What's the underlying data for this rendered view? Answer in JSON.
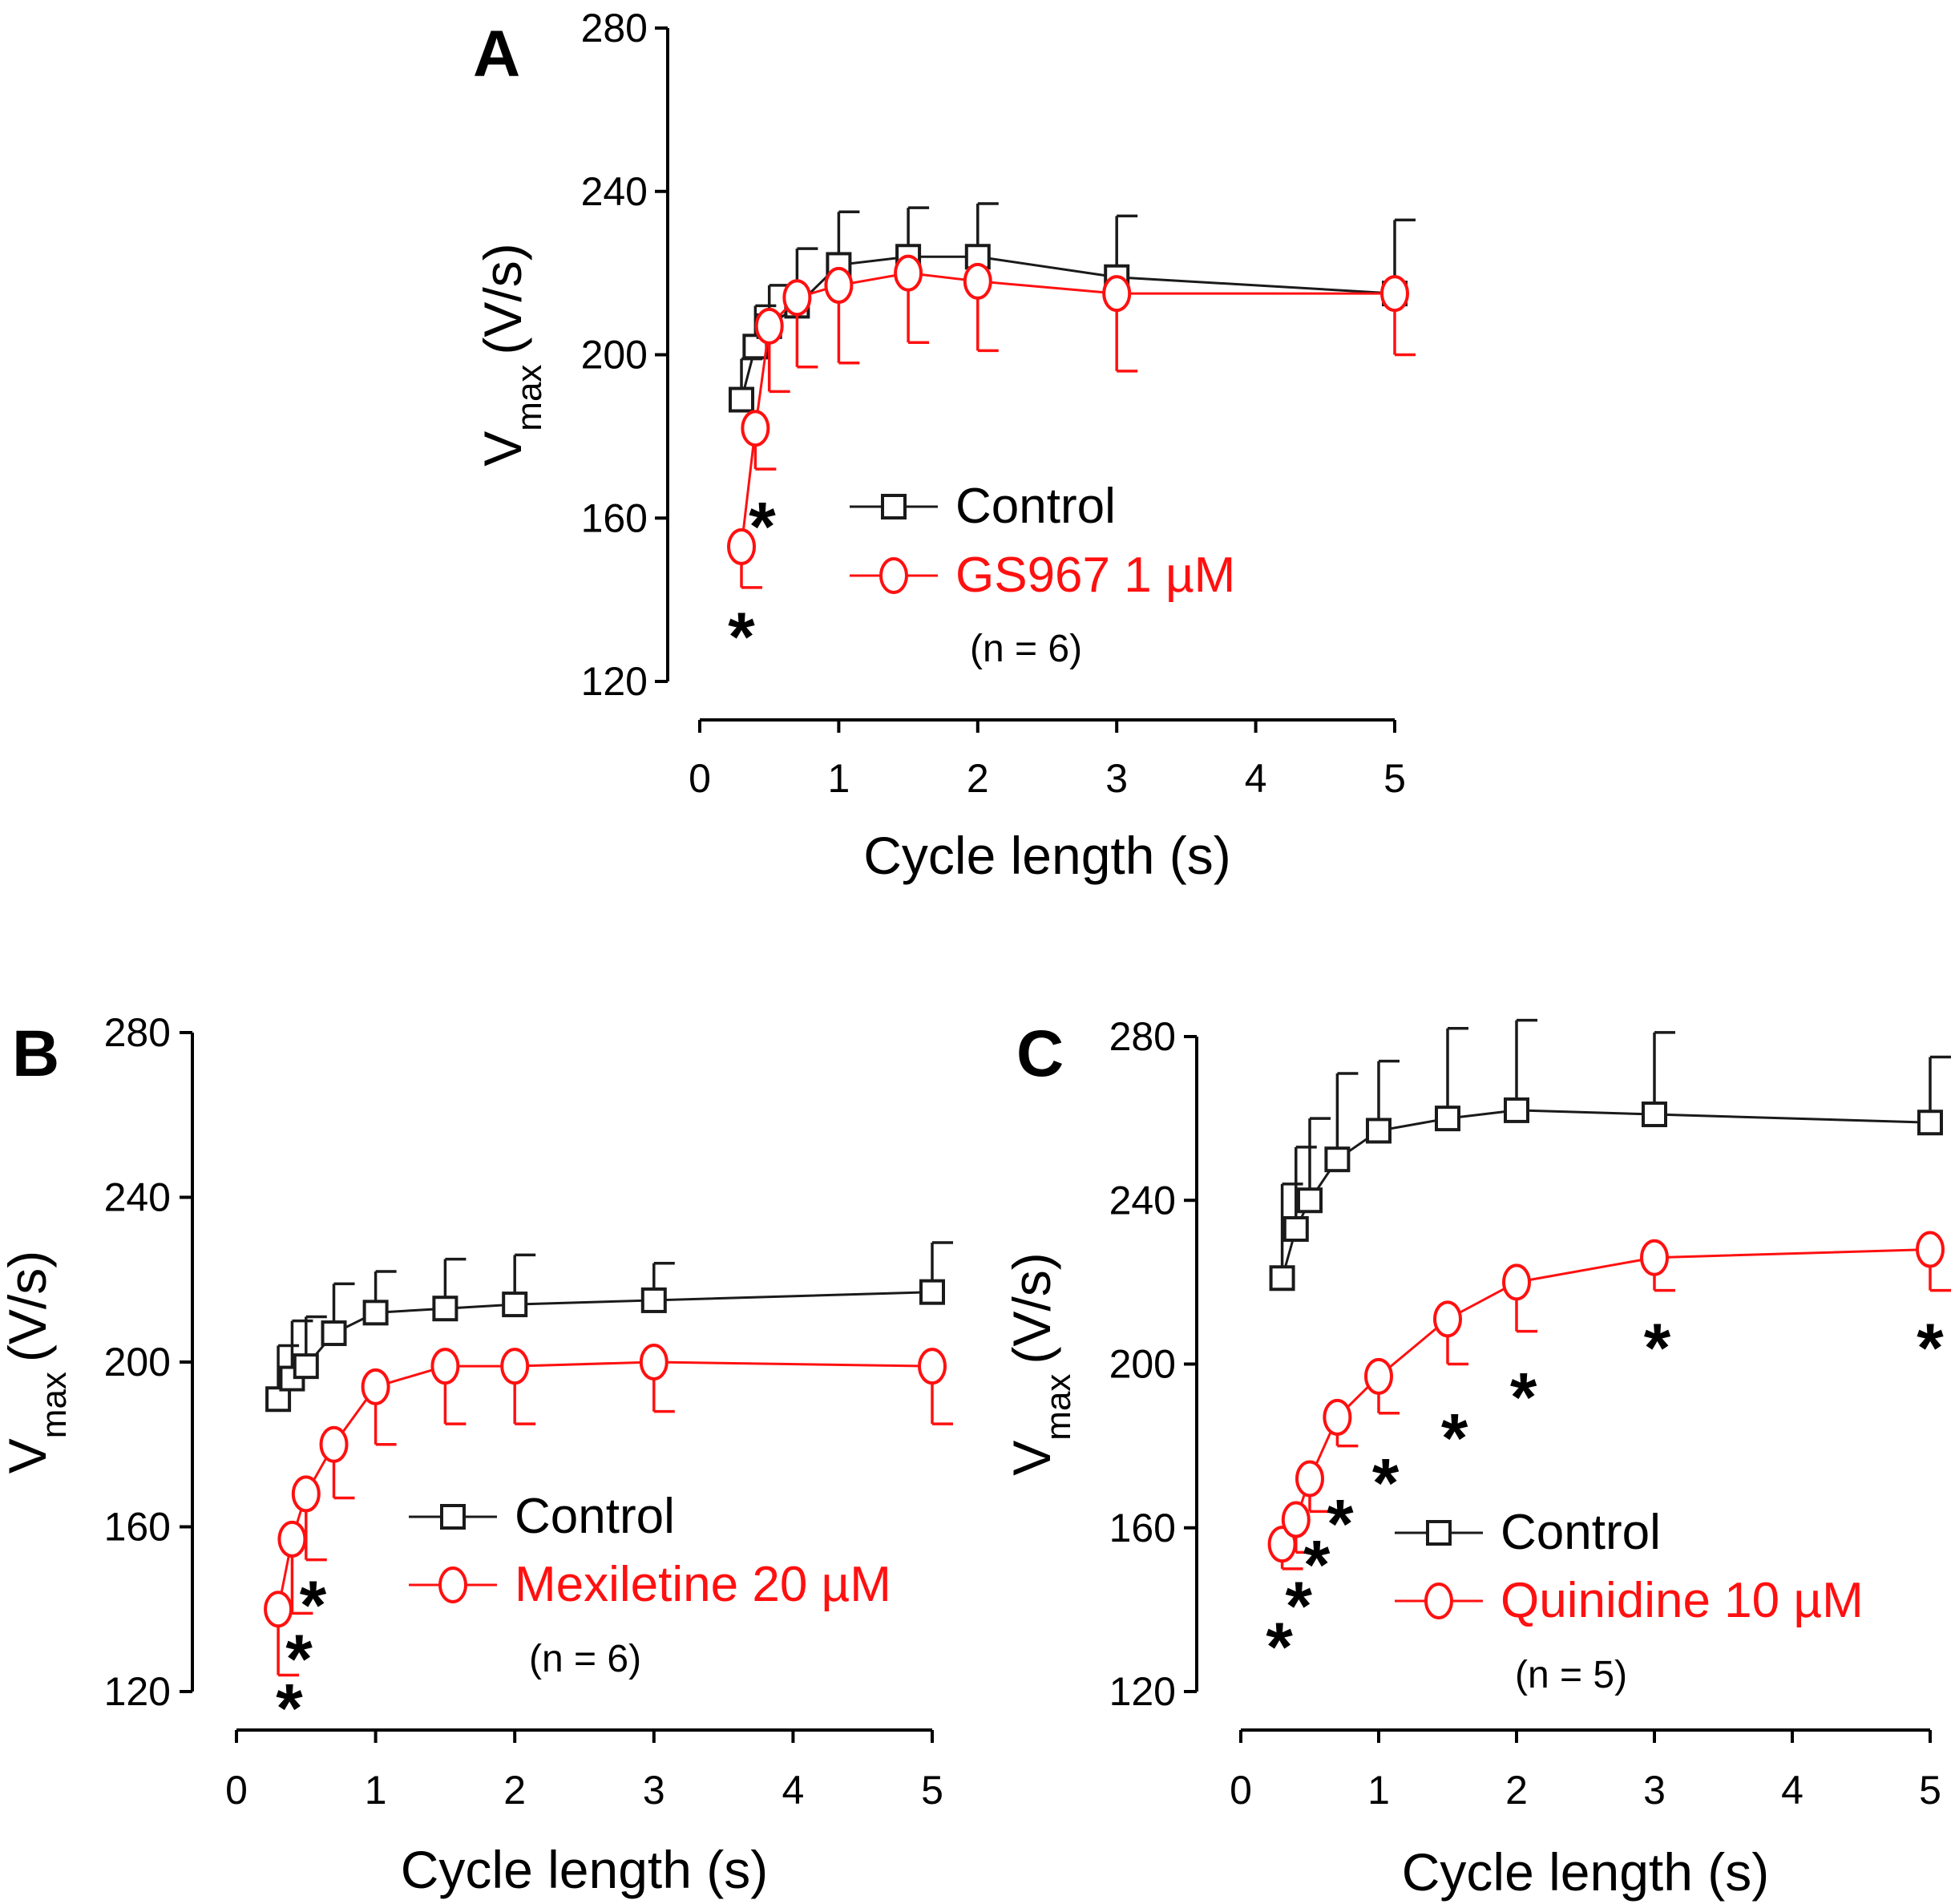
{
  "colors": {
    "control": "#1a1a1a",
    "drug": "#ff1010",
    "axis": "#000000"
  },
  "chart_data": [
    {
      "panel": "A",
      "type": "line",
      "xlabel": "Cycle length (s)",
      "ylabel_main": "V",
      "ylabel_sub": "max",
      "ylabel_unit": "(V/s)",
      "xlim": [
        0,
        5
      ],
      "ylim": [
        120,
        280
      ],
      "xticks": [
        "0",
        "1",
        "2",
        "3",
        "4",
        "5"
      ],
      "yticks": [
        "120",
        "160",
        "200",
        "240",
        "280"
      ],
      "x": [
        0.3,
        0.4,
        0.5,
        0.7,
        1,
        1.5,
        2,
        3,
        5
      ],
      "series": [
        {
          "name": "Control",
          "marker": "square",
          "values": [
            189,
            202,
            207,
            212,
            222,
            224,
            224,
            219,
            215
          ],
          "err": [
            10,
            10,
            10,
            14,
            13,
            12,
            13,
            15,
            18
          ],
          "err_dir": "up"
        },
        {
          "name": "GS967 1 µM",
          "marker": "circle",
          "values": [
            153,
            182,
            207,
            214,
            217,
            220,
            218,
            215,
            215
          ],
          "err": [
            10,
            10,
            16,
            17,
            19,
            17,
            17,
            19,
            15
          ],
          "err_dir": "down"
        }
      ],
      "stars": [
        {
          "x": 0.3,
          "y": 131,
          "text": "*"
        },
        {
          "x": 0.45,
          "y": 158,
          "text": "*"
        }
      ],
      "legend": {
        "control": "Control",
        "drug": "GS967 1 µM",
        "n": "(n = 6)"
      }
    },
    {
      "panel": "B",
      "type": "line",
      "xlabel": "Cycle length (s)",
      "ylabel_main": "V",
      "ylabel_sub": "max",
      "ylabel_unit": "(V/s)",
      "xlim": [
        0,
        5
      ],
      "ylim": [
        120,
        280
      ],
      "xticks": [
        "0",
        "1",
        "2",
        "3",
        "4",
        "5"
      ],
      "yticks": [
        "120",
        "160",
        "200",
        "240",
        "280"
      ],
      "x": [
        0.3,
        0.4,
        0.5,
        0.7,
        1,
        1.5,
        2,
        3,
        5
      ],
      "series": [
        {
          "name": "Control",
          "marker": "square",
          "values": [
            191,
            196,
            199,
            207,
            212,
            213,
            214,
            215,
            217
          ],
          "err": [
            13,
            14,
            12,
            12,
            10,
            12,
            12,
            9,
            12
          ],
          "err_dir": "up"
        },
        {
          "name": "Mexiletine 20 µM",
          "marker": "circle",
          "values": [
            140,
            157,
            168,
            180,
            194,
            199,
            199,
            200,
            199
          ],
          "err": [
            16,
            18,
            16,
            13,
            14,
            14,
            14,
            12,
            14
          ],
          "err_dir": "down"
        }
      ],
      "stars": [
        {
          "x": 0.38,
          "y": 116,
          "text": "*"
        },
        {
          "x": 0.45,
          "y": 128,
          "text": "*"
        },
        {
          "x": 0.55,
          "y": 141,
          "text": "*"
        }
      ],
      "legend": {
        "control": "Control",
        "drug": "Mexiletine 20 µM",
        "n": "(n = 6)"
      }
    },
    {
      "panel": "C",
      "type": "line",
      "xlabel": "Cycle length (s)",
      "ylabel_main": "V",
      "ylabel_sub": "max",
      "ylabel_unit": "(V/s)",
      "xlim": [
        0,
        5
      ],
      "ylim": [
        120,
        280
      ],
      "xticks": [
        "0",
        "1",
        "2",
        "3",
        "4",
        "5"
      ],
      "yticks": [
        "120",
        "160",
        "200",
        "240",
        "280"
      ],
      "x": [
        0.3,
        0.4,
        0.5,
        0.7,
        1,
        1.5,
        2,
        3,
        5
      ],
      "series": [
        {
          "name": "Control",
          "marker": "square",
          "values": [
            221,
            233,
            240,
            250,
            257,
            260,
            262,
            261,
            259
          ],
          "err": [
            23,
            20,
            20,
            21,
            17,
            22,
            22,
            20,
            16
          ],
          "err_dir": "up"
        },
        {
          "name": "Quinidine 10 µM",
          "marker": "circle",
          "values": [
            156,
            162,
            172,
            187,
            197,
            211,
            220,
            226,
            228
          ],
          "err": [
            6,
            8,
            8,
            7,
            9,
            11,
            12,
            8,
            10
          ],
          "err_dir": "down"
        }
      ],
      "stars": [
        {
          "x": 0.28,
          "y": 131,
          "text": "*"
        },
        {
          "x": 0.42,
          "y": 141,
          "text": "*"
        },
        {
          "x": 0.55,
          "y": 151,
          "text": "*"
        },
        {
          "x": 0.72,
          "y": 161,
          "text": "*"
        },
        {
          "x": 1.05,
          "y": 171,
          "text": "*"
        },
        {
          "x": 1.55,
          "y": 182,
          "text": "*"
        },
        {
          "x": 2.05,
          "y": 192,
          "text": "*"
        },
        {
          "x": 3.02,
          "y": 204,
          "text": "*"
        },
        {
          "x": 5.0,
          "y": 204,
          "text": "*"
        }
      ],
      "legend": {
        "control": "Control",
        "drug": "Quinidine 10 µM",
        "n": "(n = 5)"
      }
    }
  ]
}
